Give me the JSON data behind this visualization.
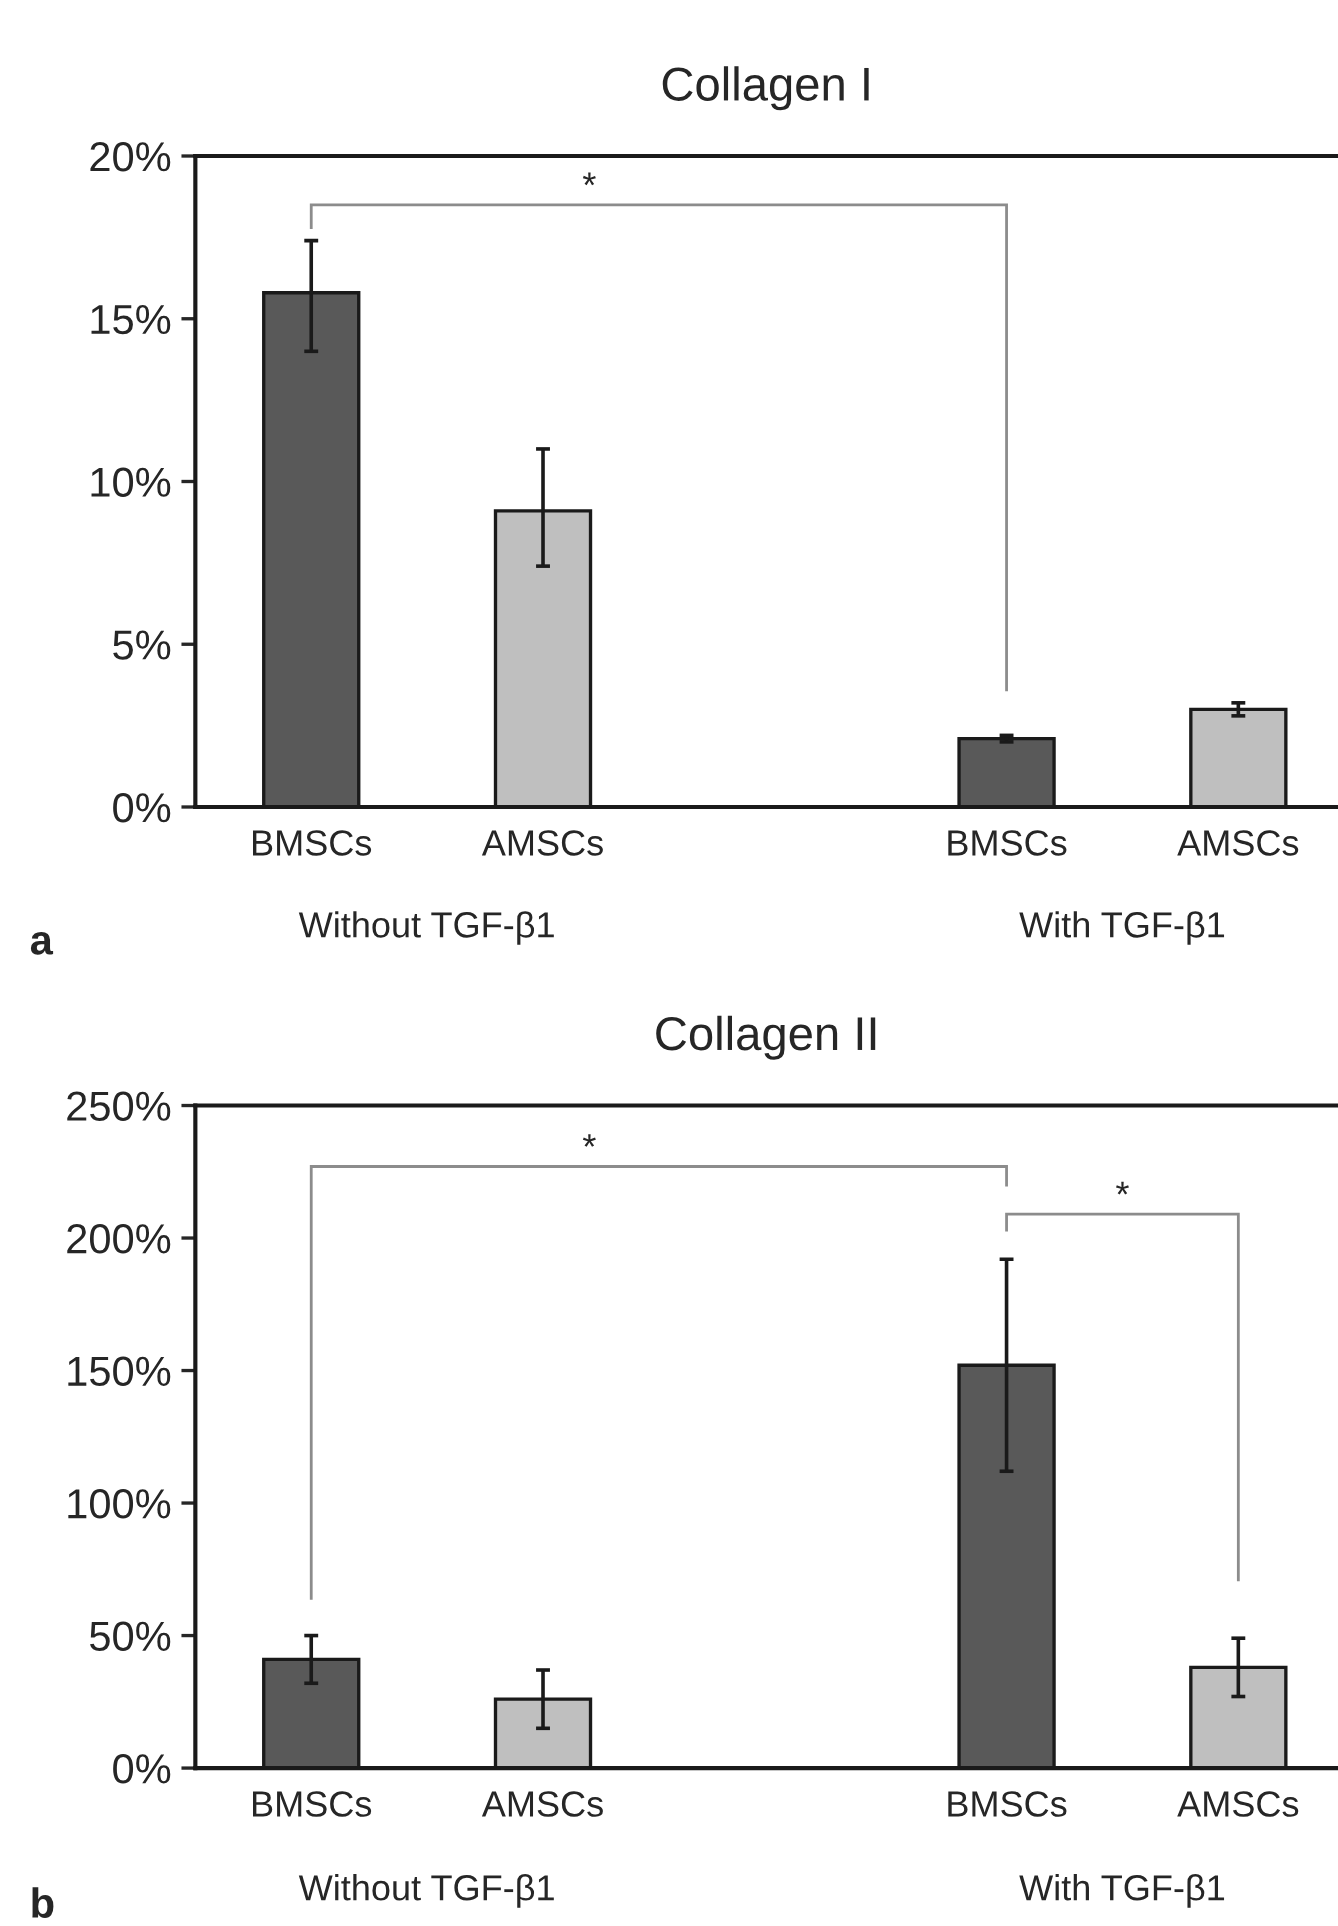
{
  "chart_data": [
    {
      "type": "bar",
      "title": "Collagen I",
      "categories": [
        "BMSCs",
        "AMSCs",
        null,
        "BMSCs",
        "AMSCs"
      ],
      "values": [
        15.8,
        9.1,
        null,
        2.1,
        3.0
      ],
      "colors": [
        "#595959",
        "#bfbfbf",
        null,
        "#595959",
        "#bfbfbf"
      ],
      "errors": [
        [
          14.0,
          17.4
        ],
        [
          7.4,
          11.0
        ],
        null,
        [
          2.0,
          2.2
        ],
        [
          2.8,
          3.2
        ]
      ],
      "ylim": [
        0,
        20
      ],
      "yticks": [
        {
          "value": 0,
          "label": "0%"
        },
        {
          "value": 5,
          "label": "5%"
        },
        {
          "value": 10,
          "label": "10%"
        },
        {
          "value": 15,
          "label": "15%"
        },
        {
          "value": 20,
          "label": "20%"
        }
      ],
      "annotations": [
        "*",
        "Without TGF-β1",
        "With TGF-β1",
        "a"
      ]
    },
    {
      "type": "bar",
      "title": "Collagen II",
      "categories": [
        "BMSCs",
        "AMSCs",
        null,
        "BMSCs",
        "AMSCs"
      ],
      "values": [
        41,
        26,
        null,
        152,
        38
      ],
      "colors": [
        "#595959",
        "#bfbfbf",
        null,
        "#595959",
        "#bfbfbf"
      ],
      "errors": [
        [
          32,
          50
        ],
        [
          15,
          37
        ],
        null,
        [
          112,
          192
        ],
        [
          27,
          49
        ]
      ],
      "ylim": [
        0,
        250
      ],
      "yticks": [
        {
          "value": 0,
          "label": "0%"
        },
        {
          "value": 50,
          "label": "50%"
        },
        {
          "value": 100,
          "label": "100%"
        },
        {
          "value": 150,
          "label": "150%"
        },
        {
          "value": 200,
          "label": "200%"
        },
        {
          "value": 250,
          "label": "250%"
        }
      ],
      "annotations": [
        "*",
        "*",
        "Without TGF-β1",
        "With TGF-β1",
        "b"
      ]
    }
  ]
}
